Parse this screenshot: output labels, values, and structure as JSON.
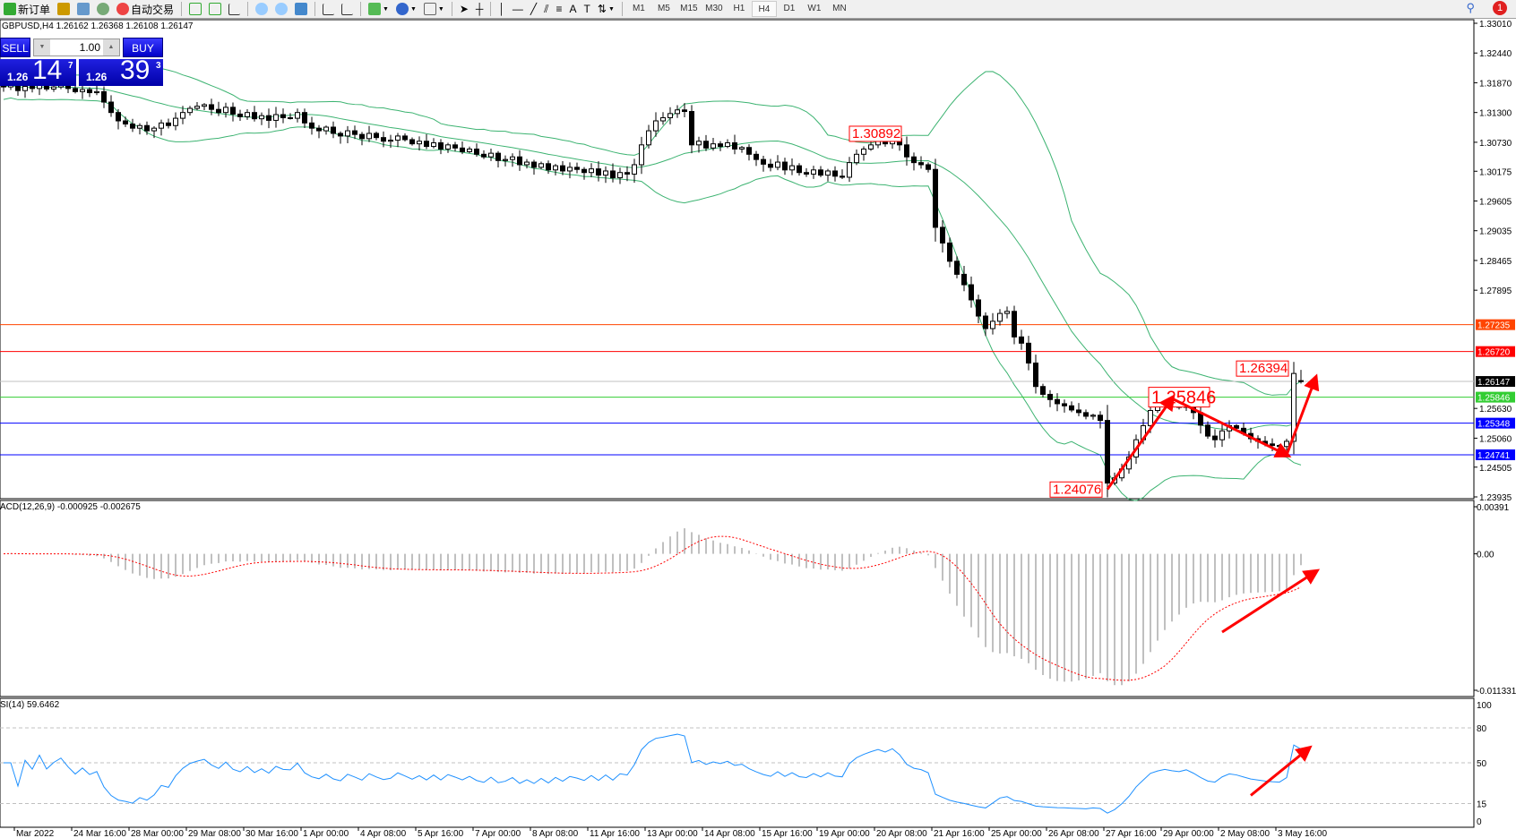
{
  "toolbar": {
    "new_order": "新订单",
    "auto_trading": "自动交易",
    "timeframes": [
      "M1",
      "M5",
      "M15",
      "M30",
      "H1",
      "H4",
      "D1",
      "W1",
      "MN"
    ],
    "active_timeframe": "H4",
    "notification_count": "1",
    "icons": [
      "new-order-icon",
      "history-icon",
      "terminal-icon",
      "signal-icon",
      "auto-trading-icon",
      "bar-chart-icon",
      "candle-chart-icon",
      "line-chart-icon",
      "zoom-in-icon",
      "zoom-out-icon",
      "tile-windows-icon",
      "autoscroll-icon",
      "chart-shift-icon",
      "indicators-icon",
      "periods-icon",
      "templates-icon",
      "cursor-icon",
      "crosshair-icon",
      "vertical-line-icon",
      "horizontal-line-icon",
      "trendline-icon",
      "fibo-icon",
      "fibo-expansion-icon",
      "text-icon",
      "text-label-icon",
      "arrows-icon",
      "search-icon",
      "chat-icon"
    ]
  },
  "symbol_info": "GBPUSD,H4  1.26162 1.26368 1.26108 1.26147",
  "trade_panel": {
    "sell_label": "SELL",
    "buy_label": "BUY",
    "lot": "1.00",
    "sell_price": {
      "small": "1.26",
      "big": "14",
      "sup": "7"
    },
    "buy_price": {
      "small": "1.26",
      "big": "39",
      "sup": "3"
    },
    "color": "#0000c8"
  },
  "macd_label": "ACD(12,26,9) -0.000925 -0.002675",
  "rsi_label": "SI(14) 59.6462",
  "chart_data": {
    "type": "candlestick",
    "symbol": "GBPUSD",
    "timeframe": "H4",
    "last_bar": {
      "open": 1.26162,
      "high": 1.26368,
      "low": 1.26108,
      "close": 1.26147
    },
    "closes": [
      1.3179,
      1.3185,
      1.3172,
      1.318,
      1.3176,
      1.3183,
      1.3175,
      1.3179,
      1.3182,
      1.3176,
      1.317,
      1.3174,
      1.3168,
      1.317,
      1.315,
      1.313,
      1.3114,
      1.3108,
      1.31,
      1.3105,
      1.3095,
      1.31,
      1.311,
      1.3105,
      1.3119,
      1.313,
      1.3138,
      1.3142,
      1.3145,
      1.3136,
      1.313,
      1.314,
      1.3127,
      1.3122,
      1.313,
      1.3118,
      1.3124,
      1.3115,
      1.3126,
      1.312,
      1.3119,
      1.313,
      1.311,
      1.31,
      1.3095,
      1.3102,
      1.309,
      1.3085,
      1.3095,
      1.3088,
      1.308,
      1.309,
      1.3082,
      1.3075,
      1.3077,
      1.3085,
      1.3078,
      1.307,
      1.3075,
      1.3065,
      1.3072,
      1.306,
      1.3068,
      1.3062,
      1.3055,
      1.306,
      1.305,
      1.3045,
      1.3052,
      1.3038,
      1.304,
      1.3045,
      1.303,
      1.3035,
      1.3025,
      1.3032,
      1.302,
      1.3028,
      1.3018,
      1.3025,
      1.3021,
      1.3015,
      1.3022,
      1.301,
      1.3018,
      1.3005,
      1.3015,
      1.3012,
      1.303,
      1.3068,
      1.3095,
      1.3114,
      1.312,
      1.3128,
      1.3135,
      1.3132,
      1.3068,
      1.3075,
      1.3062,
      1.307,
      1.3065,
      1.3072,
      1.306,
      1.3063,
      1.305,
      1.304,
      1.3031,
      1.3025,
      1.3035,
      1.302,
      1.3028,
      1.3015,
      1.3012,
      1.302,
      1.301,
      1.3018,
      1.3008,
      1.3006,
      1.3034,
      1.305,
      1.306,
      1.3068,
      1.3075,
      1.307,
      1.308,
      1.3068,
      1.3045,
      1.3034,
      1.303,
      1.3021,
      1.291,
      1.288,
      1.2845,
      1.282,
      1.28,
      1.2771,
      1.274,
      1.2716,
      1.273,
      1.2745,
      1.2749,
      1.27,
      1.2688,
      1.265,
      1.2605,
      1.259,
      1.258,
      1.2572,
      1.2568,
      1.256,
      1.2555,
      1.2548,
      1.255,
      1.254,
      1.242,
      1.243,
      1.2447,
      1.247,
      1.2503,
      1.253,
      1.2559,
      1.257,
      1.2577,
      1.257,
      1.2565,
      1.2572,
      1.2555,
      1.2531,
      1.251,
      1.2503,
      1.252,
      1.253,
      1.2525,
      1.2515,
      1.2505,
      1.25,
      1.2495,
      1.2492,
      1.249,
      1.25,
      1.263,
      1.26147
    ],
    "ylim": [
      1.23935,
      1.3301
    ],
    "price_ticks": [
      "1.33010",
      "1.32440",
      "1.31870",
      "1.31300",
      "1.30730",
      "1.30175",
      "1.29605",
      "1.29035",
      "1.28465",
      "1.27895",
      "1.25630",
      "1.25060",
      "1.24505",
      "1.23935"
    ],
    "x_tick_labels": [
      "Mar 2022",
      "24 Mar 16:00",
      "28 Mar 00:00",
      "29 Mar 08:00",
      "30 Mar 16:00",
      "1 Apr 00:00",
      "4 Apr 08:00",
      "5 Apr 16:00",
      "7 Apr 00:00",
      "8 Apr 08:00",
      "11 Apr 16:00",
      "13 Apr 00:00",
      "14 Apr 08:00",
      "15 Apr 16:00",
      "19 Apr 00:00",
      "20 Apr 08:00",
      "21 Apr 16:00",
      "25 Apr 00:00",
      "26 Apr 08:00",
      "27 Apr 16:00",
      "29 Apr 00:00",
      "2 May 08:00",
      "3 May 16:00"
    ],
    "hlines": [
      {
        "price": 1.27235,
        "label": "1.27235",
        "color": "#ff4500"
      },
      {
        "price": 1.2672,
        "label": "1.26720",
        "color": "#ff0000"
      },
      {
        "price": 1.26147,
        "label": "1.26147",
        "color": "#000000",
        "line": "#c0c0c0"
      },
      {
        "price": 1.25846,
        "label": "1.25846",
        "color": "#32cd32"
      },
      {
        "price": 1.25348,
        "label": "1.25348",
        "color": "#0000ff"
      },
      {
        "price": 1.24741,
        "label": "1.24741",
        "color": "#0000ff"
      }
    ],
    "price_labels": [
      {
        "text": "1.30892",
        "bar": 126,
        "price": 1.30892,
        "size": "normal"
      },
      {
        "text": "1.26394",
        "bar": 180,
        "price": 1.26394,
        "size": "normal"
      },
      {
        "text": "1.25846",
        "bar": 169,
        "price": 1.25846,
        "size": "large"
      },
      {
        "text": "1.24076",
        "bar": 154,
        "price": 1.24076,
        "size": "normal"
      }
    ],
    "indicators": {
      "bollinger": {
        "period": 20,
        "deviation": 2,
        "color": "#3cb371"
      },
      "macd": {
        "fast": 12,
        "slow": 26,
        "signal": 9,
        "main": -0.000925,
        "signal_value": -0.002675,
        "ticks": [
          "0.00391",
          "0.00",
          "-0.011331"
        ],
        "ylim": [
          -0.011331,
          0.00391
        ],
        "histogram_color": "#c0c0c0",
        "signal_color": "#ff0000"
      },
      "rsi": {
        "period": 14,
        "value": 59.6462,
        "levels": [
          80,
          50,
          15
        ],
        "ticks": [
          "100",
          "80",
          "50",
          "15",
          "0"
        ],
        "color": "#1e90ff"
      }
    },
    "annotation_color": "#ff0000"
  }
}
